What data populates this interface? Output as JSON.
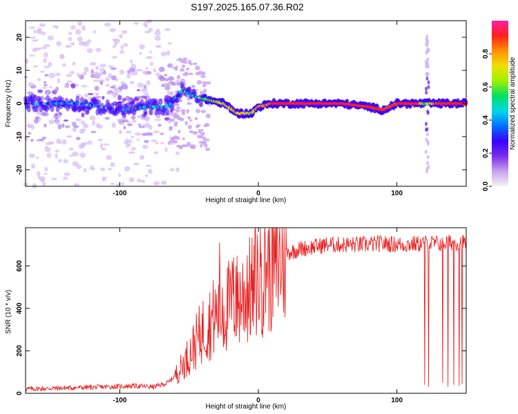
{
  "title": "S197.2025.165.07.36.R02",
  "chart_data": [
    {
      "type": "heatmap",
      "xlabel": "Height of straight line (km)",
      "ylabel": "Frequency (Hz)",
      "xlim": [
        -168,
        150
      ],
      "ylim": [
        -25,
        25
      ],
      "xticks": [
        -100,
        0,
        100
      ],
      "yticks": [
        -20,
        -10,
        0,
        10,
        20
      ],
      "colorbar": {
        "label": "Normalized spectral amplitude",
        "range": [
          0,
          1
        ],
        "ticks": [
          "0.0",
          "0.2",
          "0.4",
          "0.6",
          "0.8"
        ],
        "colors": [
          "#f4f4f4",
          "#c8a0f0",
          "#7a2ee8",
          "#3a00ff",
          "#0070ff",
          "#00d8e8",
          "#00e060",
          "#a0f000",
          "#f0e000",
          "#ff9000",
          "#ff2020",
          "#ff20a0"
        ]
      },
      "ridge": {
        "description": "dominant frequency vs height",
        "x": [
          -168,
          -130,
          -100,
          -80,
          -65,
          -55,
          -45,
          -35,
          -25,
          -15,
          -5,
          0,
          10,
          30,
          60,
          80,
          90,
          95,
          100,
          115,
          120,
          130,
          150
        ],
        "y": [
          0,
          0,
          -2,
          -1,
          -1,
          4,
          2,
          1,
          0,
          -3,
          -3,
          -1,
          0,
          0,
          0,
          -1,
          -2,
          -1,
          0,
          0,
          0,
          0,
          0
        ],
        "amplitude": [
          0.3,
          0.3,
          0.3,
          0.35,
          0.35,
          0.45,
          0.5,
          0.6,
          0.7,
          0.75,
          0.7,
          0.8,
          0.9,
          0.95,
          0.95,
          0.9,
          0.85,
          0.85,
          0.9,
          0.9,
          0.6,
          0.9,
          0.9
        ]
      }
    },
    {
      "type": "line",
      "xlabel": "Height of straight line (km)",
      "ylabel": "SNR (10 * v/v)",
      "xlim": [
        -168,
        150
      ],
      "ylim": [
        0,
        780
      ],
      "xticks": [
        -100,
        0,
        100
      ],
      "yticks": [
        0,
        200,
        400,
        600
      ],
      "color": "#e82020",
      "series": [
        {
          "x": [
            -168,
            -140,
            -110,
            -90,
            -75,
            -65,
            -58,
            -52,
            -46,
            -40,
            -36,
            -30,
            -26,
            -22,
            -18,
            -14,
            -10,
            -6,
            -2,
            2,
            8,
            14,
            20,
            30,
            40,
            50,
            60,
            75,
            90,
            105,
            118,
            122,
            130,
            140,
            150
          ],
          "y": [
            20,
            25,
            30,
            35,
            30,
            50,
            100,
            160,
            230,
            300,
            330,
            370,
            360,
            410,
            430,
            440,
            470,
            480,
            530,
            560,
            600,
            630,
            660,
            680,
            690,
            700,
            700,
            700,
            705,
            700,
            705,
            705,
            705,
            710,
            710
          ]
        }
      ],
      "dropouts": [
        {
          "x": 120,
          "y": 40
        },
        {
          "x": 123,
          "y": 30
        },
        {
          "x": 133,
          "y": 50
        },
        {
          "x": 137,
          "y": 30
        },
        {
          "x": 141,
          "y": 40
        },
        {
          "x": 145,
          "y": 35
        },
        {
          "x": 147,
          "y": 45
        }
      ],
      "spikes": [
        {
          "x": -28,
          "y": 710
        },
        {
          "x": -26,
          "y": 500
        },
        {
          "x": -18,
          "y": 640
        },
        {
          "x": -16,
          "y": 600
        },
        {
          "x": -8,
          "y": 650
        },
        {
          "x": -4,
          "y": 580
        },
        {
          "x": 2,
          "y": 660
        },
        {
          "x": 6,
          "y": 620
        }
      ]
    }
  ]
}
